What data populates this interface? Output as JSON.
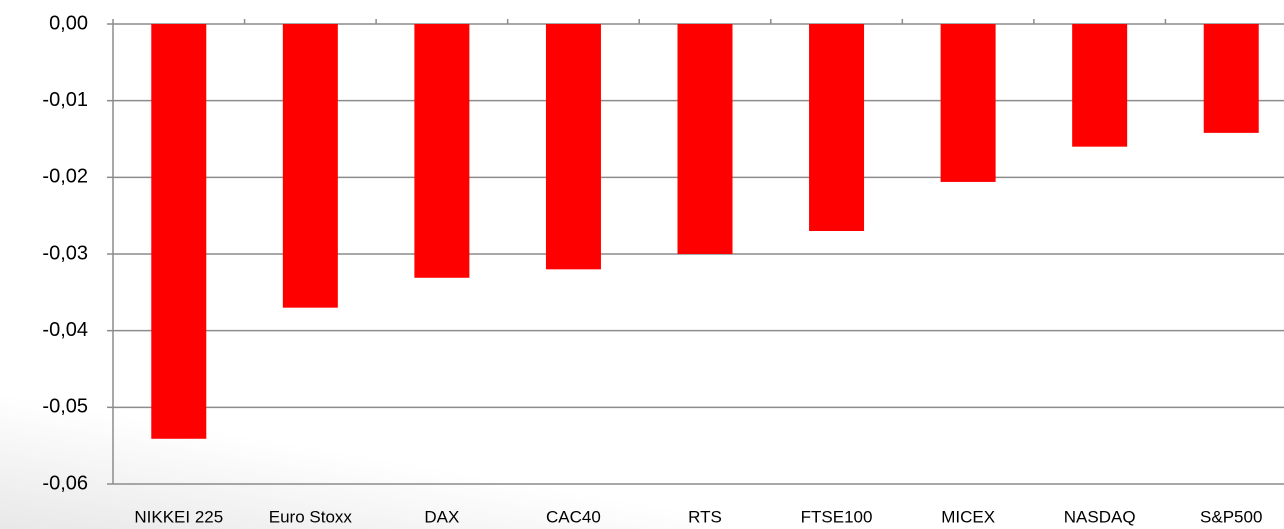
{
  "chart_data": {
    "type": "bar",
    "categories": [
      "NIKKEI 225",
      "Euro Stoxx",
      "DAX",
      "CAC40",
      "RTS",
      "FTSE100",
      "MICEX",
      "NASDAQ",
      "S&P500"
    ],
    "values": [
      -0.0541,
      -0.037,
      -0.0331,
      -0.032,
      -0.03,
      -0.027,
      -0.0206,
      -0.016,
      -0.0142
    ],
    "color": "#ff0000",
    "ylim": [
      -0.06,
      0
    ],
    "yticks": [
      {
        "value": 0,
        "label": "0,00"
      },
      {
        "value": -0.01,
        "label": "-0,01"
      },
      {
        "value": -0.02,
        "label": "-0,02"
      },
      {
        "value": -0.03,
        "label": "-0,03"
      },
      {
        "value": -0.04,
        "label": "-0,04"
      },
      {
        "value": -0.05,
        "label": "-0,05"
      },
      {
        "value": -0.06,
        "label": "-0,06"
      }
    ],
    "grid": true
  }
}
